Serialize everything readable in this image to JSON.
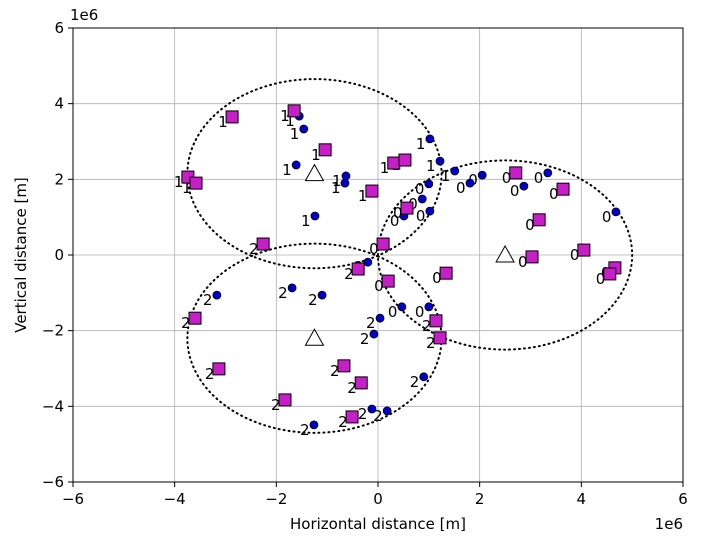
{
  "chart_data": {
    "type": "scatter",
    "x_label": "Horizontal distance [m]",
    "y_label": "Vertical distance [m]",
    "x_offset_label": "1e6",
    "y_offset_label": "1e6",
    "xlim": [
      -6,
      6
    ],
    "ylim": [
      -6,
      6
    ],
    "xticks": [
      {
        "value": -6,
        "label": "−6"
      },
      {
        "value": -4,
        "label": "−4"
      },
      {
        "value": -2,
        "label": "−2"
      },
      0,
      2,
      4,
      6
    ],
    "yticks": [
      {
        "value": -6,
        "label": "−6"
      },
      {
        "value": -4,
        "label": "−4"
      },
      {
        "value": -2,
        "label": "−2"
      },
      0,
      2,
      4,
      6
    ],
    "grid": true,
    "radius": 2.5,
    "centers": {
      "marker": "triangle",
      "color": "#ffffff",
      "x": [
        -1.25,
        -1.25,
        2.5
      ],
      "y": [
        2.15,
        -2.2,
        0
      ]
    },
    "series": [
      {
        "marker": "circle",
        "color": "#0000cd",
        "x": [
          -1.55,
          -1.46,
          -1.61,
          -0.63,
          -0.65,
          -1.24,
          1.02,
          1.22,
          1.51,
          1.81,
          2.05,
          1.0,
          0.87,
          1.02,
          0.51,
          2.87,
          3.34,
          4.68,
          1.0,
          0.47,
          -3.17,
          -1.69,
          -1.1,
          -0.2,
          0.04,
          -0.08,
          0.9,
          -0.12,
          0.18,
          -1.26
        ],
        "y": [
          3.67,
          3.33,
          2.38,
          2.09,
          1.9,
          1.03,
          3.07,
          2.48,
          2.22,
          1.9,
          2.11,
          1.88,
          1.48,
          1.16,
          1.03,
          1.82,
          2.17,
          1.14,
          -1.37,
          -1.37,
          -1.06,
          -0.87,
          -1.06,
          -0.19,
          -1.67,
          -2.09,
          -3.22,
          -4.07,
          -4.12,
          -4.49
        ],
        "labels": [
          "1",
          "1",
          "1",
          "1",
          "1",
          "1",
          "1",
          "1",
          "1",
          "0",
          "0",
          "0",
          "0",
          "0",
          "0",
          "0",
          "0",
          "0",
          "0",
          "0",
          "2",
          "2",
          "2",
          "2",
          "2",
          "2",
          "2",
          "2",
          "2",
          "2"
        ]
      },
      {
        "marker": "square",
        "color": "#c71fc7",
        "x": [
          -2.87,
          -1.65,
          -1.04,
          -3.74,
          -3.58,
          -0.12,
          0.31,
          0.53,
          0.57,
          -2.26,
          0.1,
          2.71,
          3.64,
          3.17,
          4.05,
          3.03,
          4.66,
          4.56,
          1.34,
          0.2,
          -0.39,
          1.14,
          1.22,
          -3.6,
          -3.13,
          -0.67,
          -0.33,
          -1.83,
          -0.51
        ],
        "y": [
          3.65,
          3.81,
          2.78,
          2.06,
          1.9,
          1.69,
          2.43,
          2.51,
          1.24,
          0.29,
          0.29,
          2.17,
          1.74,
          0.93,
          0.13,
          -0.05,
          -0.34,
          -0.5,
          -0.48,
          -0.69,
          -0.37,
          -1.74,
          -2.19,
          -1.67,
          -3.01,
          -2.93,
          -3.38,
          -3.83,
          -4.28
        ],
        "labels": [
          "1",
          "1",
          "1",
          "1",
          "1",
          "1",
          "1",
          "1",
          "0",
          "2",
          "0",
          "0",
          "0",
          "0",
          "0",
          "0",
          "0",
          "0",
          "0",
          "0",
          "2",
          "2",
          "2",
          "2",
          "2",
          "2",
          "2",
          "2",
          "2"
        ]
      }
    ]
  }
}
